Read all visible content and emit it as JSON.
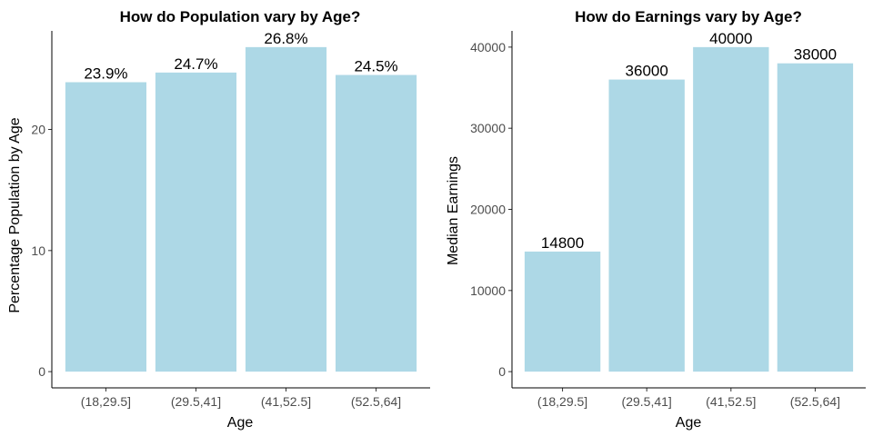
{
  "chart_data": [
    {
      "type": "bar",
      "title": "How do Population vary by Age?",
      "xlabel": "Age",
      "ylabel": "Percentage Population by Age",
      "categories": [
        "(18,29.5]",
        "(29.5,41]",
        "(41,52.5]",
        "(52.5,64]"
      ],
      "values": [
        23.9,
        24.7,
        26.8,
        24.5
      ],
      "data_labels": [
        "23.9%",
        "24.7%",
        "26.8%",
        "24.5%"
      ],
      "y_ticks": [
        0,
        10,
        20
      ],
      "y_tick_labels": [
        "0",
        "10",
        "20"
      ],
      "ylim": [
        -1.34,
        28.14
      ],
      "bar_color": "#add8e6",
      "grid": false
    },
    {
      "type": "bar",
      "title": "How do Earnings vary by Age?",
      "xlabel": "Age",
      "ylabel": "Median Earnings",
      "categories": [
        "(18,29.5]",
        "(29.5,41]",
        "(41,52.5]",
        "(52.5,64]"
      ],
      "values": [
        14800,
        36000,
        40000,
        38000
      ],
      "data_labels": [
        "14800",
        "36000",
        "40000",
        "38000"
      ],
      "y_ticks": [
        0,
        10000,
        20000,
        30000,
        40000
      ],
      "y_tick_labels": [
        "0",
        "10000",
        "20000",
        "30000",
        "40000"
      ],
      "ylim": [
        -2000,
        42000
      ],
      "bar_color": "#add8e6",
      "grid": false
    }
  ]
}
